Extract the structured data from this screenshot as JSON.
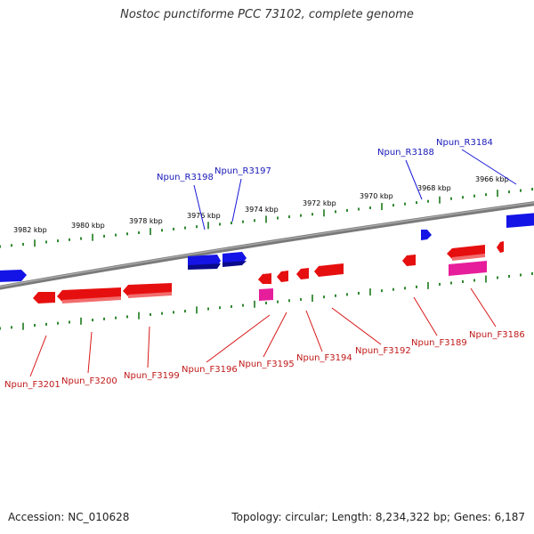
{
  "title": "Nostoc punctiforme PCC 73102, complete genome",
  "footer": {
    "accession": "Accession: NC_010628",
    "summary": "Topology: circular; Length: 8,234,322 bp; Genes: 6,187"
  },
  "colors": {
    "reverse": "#1414e6",
    "forward": "#e60f0f",
    "forward_alt": "#e61e9b",
    "backbone": "#808080",
    "ticks": "#1a7a1a",
    "reverse_label": "#1818b8",
    "forward_label": "#c01818"
  },
  "scale_labels": [
    "3982 kbp",
    "3980 kbp",
    "3978 kbp",
    "3976 kbp",
    "3974 kbp",
    "3972 kbp",
    "3970 kbp",
    "3968 kbp",
    "3966 kbp"
  ],
  "reverse_gene_labels": [
    "Npun_R3198",
    "Npun_R3197",
    "Npun_R3188",
    "Npun_R3184"
  ],
  "forward_gene_labels": [
    "Npun_F3201",
    "Npun_F3200",
    "Npun_F3199",
    "Npun_F3196",
    "Npun_F3195",
    "Npun_F3194",
    "Npun_F3192",
    "Npun_F3189",
    "Npun_F3186"
  ]
}
